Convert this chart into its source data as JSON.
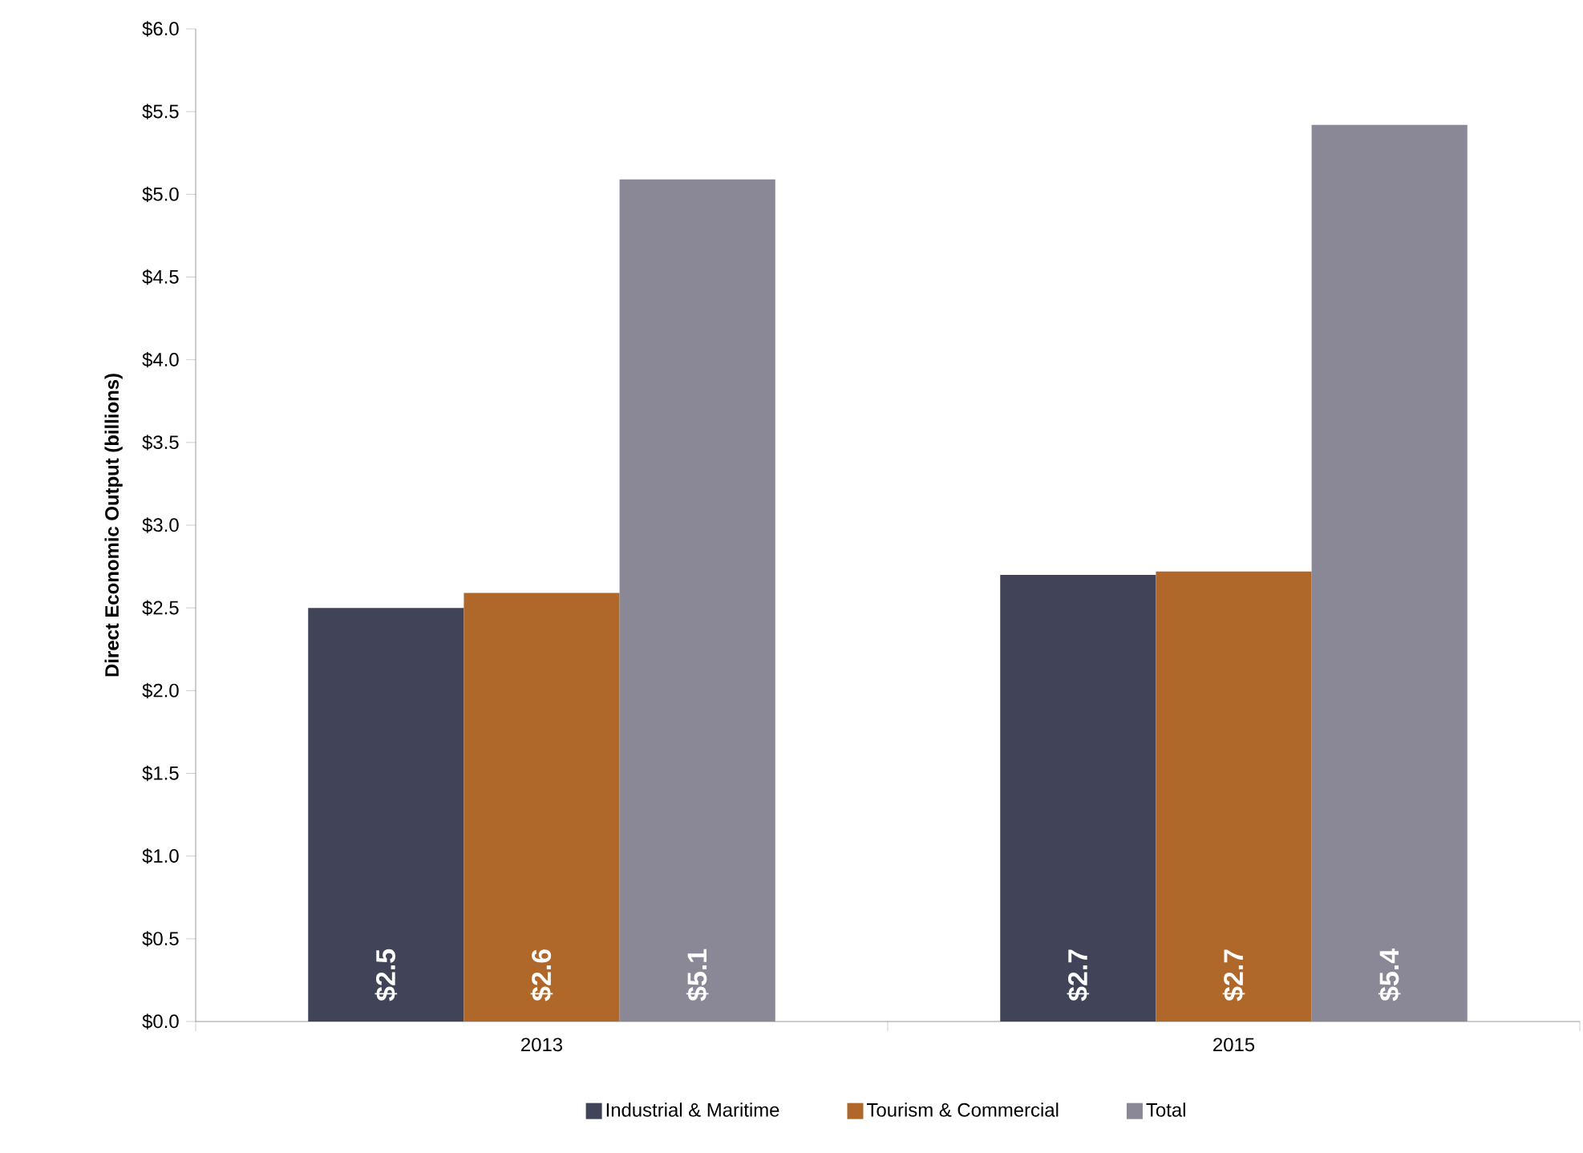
{
  "chart_data": {
    "type": "bar",
    "ylabel": "Direct Economic Output (billions)",
    "categories": [
      "2013",
      "2015"
    ],
    "series": [
      {
        "name": "Industrial & Maritime",
        "color": "#414459",
        "values": [
          2.5,
          2.7
        ],
        "value_labels": [
          "$2.5",
          "$2.7"
        ]
      },
      {
        "name": "Tourism & Commercial",
        "color": "#b0682a",
        "values": [
          2.59,
          2.72
        ],
        "value_labels": [
          "$2.6",
          "$2.7"
        ]
      },
      {
        "name": "Total",
        "color": "#8a8896",
        "values": [
          5.09,
          5.42
        ],
        "value_labels": [
          "$5.1",
          "$5.4"
        ]
      }
    ],
    "ylim": [
      0,
      6
    ],
    "yticks": [
      {
        "value": 0,
        "label": "$0.0"
      },
      {
        "value": 0.5,
        "label": "$0.5"
      },
      {
        "value": 1,
        "label": "$1.0"
      },
      {
        "value": 1.5,
        "label": "$1.5"
      },
      {
        "value": 2,
        "label": "$2.0"
      },
      {
        "value": 2.5,
        "label": "$2.5"
      },
      {
        "value": 3,
        "label": "$3.0"
      },
      {
        "value": 3.5,
        "label": "$3.5"
      },
      {
        "value": 4,
        "label": "$4.0"
      },
      {
        "value": 4.5,
        "label": "$4.5"
      },
      {
        "value": 5,
        "label": "$5.0"
      },
      {
        "value": 5.5,
        "label": "$5.5"
      },
      {
        "value": 6,
        "label": "$6.0"
      }
    ],
    "legend": "bottom"
  }
}
